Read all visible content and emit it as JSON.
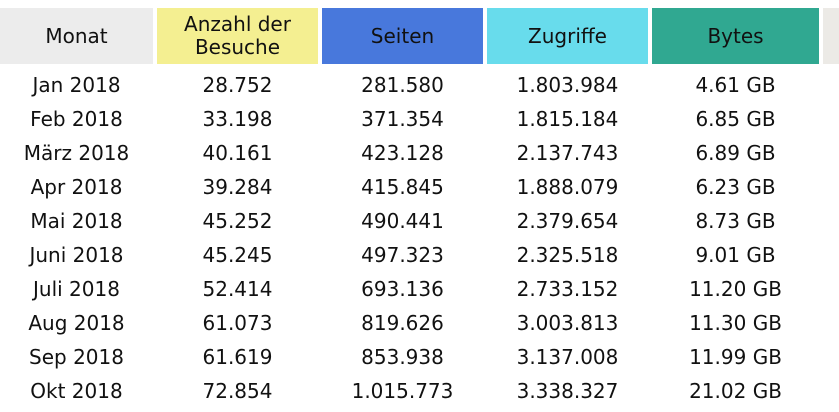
{
  "colors": {
    "month_header_bg": "#ececec",
    "visits_header_bg": "#f4ef91",
    "pages_header_bg": "#4878dc",
    "hits_header_bg": "#68dcec",
    "bytes_header_bg": "#30a891",
    "edge_header_bg": "#eceae6"
  },
  "table": {
    "headers": {
      "month": "Monat",
      "visits_line1": "Anzahl der",
      "visits_line2": "Besuche",
      "pages": "Seiten",
      "hits": "Zugriffe",
      "bytes": "Bytes"
    },
    "rows": [
      {
        "month": "Jan 2018",
        "visits": "28.752",
        "pages": "281.580",
        "hits": "1.803.984",
        "bytes": "4.61 GB"
      },
      {
        "month": "Feb 2018",
        "visits": "33.198",
        "pages": "371.354",
        "hits": "1.815.184",
        "bytes": "6.85 GB"
      },
      {
        "month": "März 2018",
        "visits": "40.161",
        "pages": "423.128",
        "hits": "2.137.743",
        "bytes": "6.89 GB"
      },
      {
        "month": "Apr 2018",
        "visits": "39.284",
        "pages": "415.845",
        "hits": "1.888.079",
        "bytes": "6.23 GB"
      },
      {
        "month": "Mai 2018",
        "visits": "45.252",
        "pages": "490.441",
        "hits": "2.379.654",
        "bytes": "8.73 GB"
      },
      {
        "month": "Juni 2018",
        "visits": "45.245",
        "pages": "497.323",
        "hits": "2.325.518",
        "bytes": "9.01 GB"
      },
      {
        "month": "Juli 2018",
        "visits": "52.414",
        "pages": "693.136",
        "hits": "2.733.152",
        "bytes": "11.20 GB"
      },
      {
        "month": "Aug 2018",
        "visits": "61.073",
        "pages": "819.626",
        "hits": "3.003.813",
        "bytes": "11.30 GB"
      },
      {
        "month": "Sep 2018",
        "visits": "61.619",
        "pages": "853.938",
        "hits": "3.137.008",
        "bytes": "11.99 GB"
      },
      {
        "month": "Okt 2018",
        "visits": "72.854",
        "pages": "1.015.773",
        "hits": "3.338.327",
        "bytes": "21.02 GB"
      }
    ]
  }
}
